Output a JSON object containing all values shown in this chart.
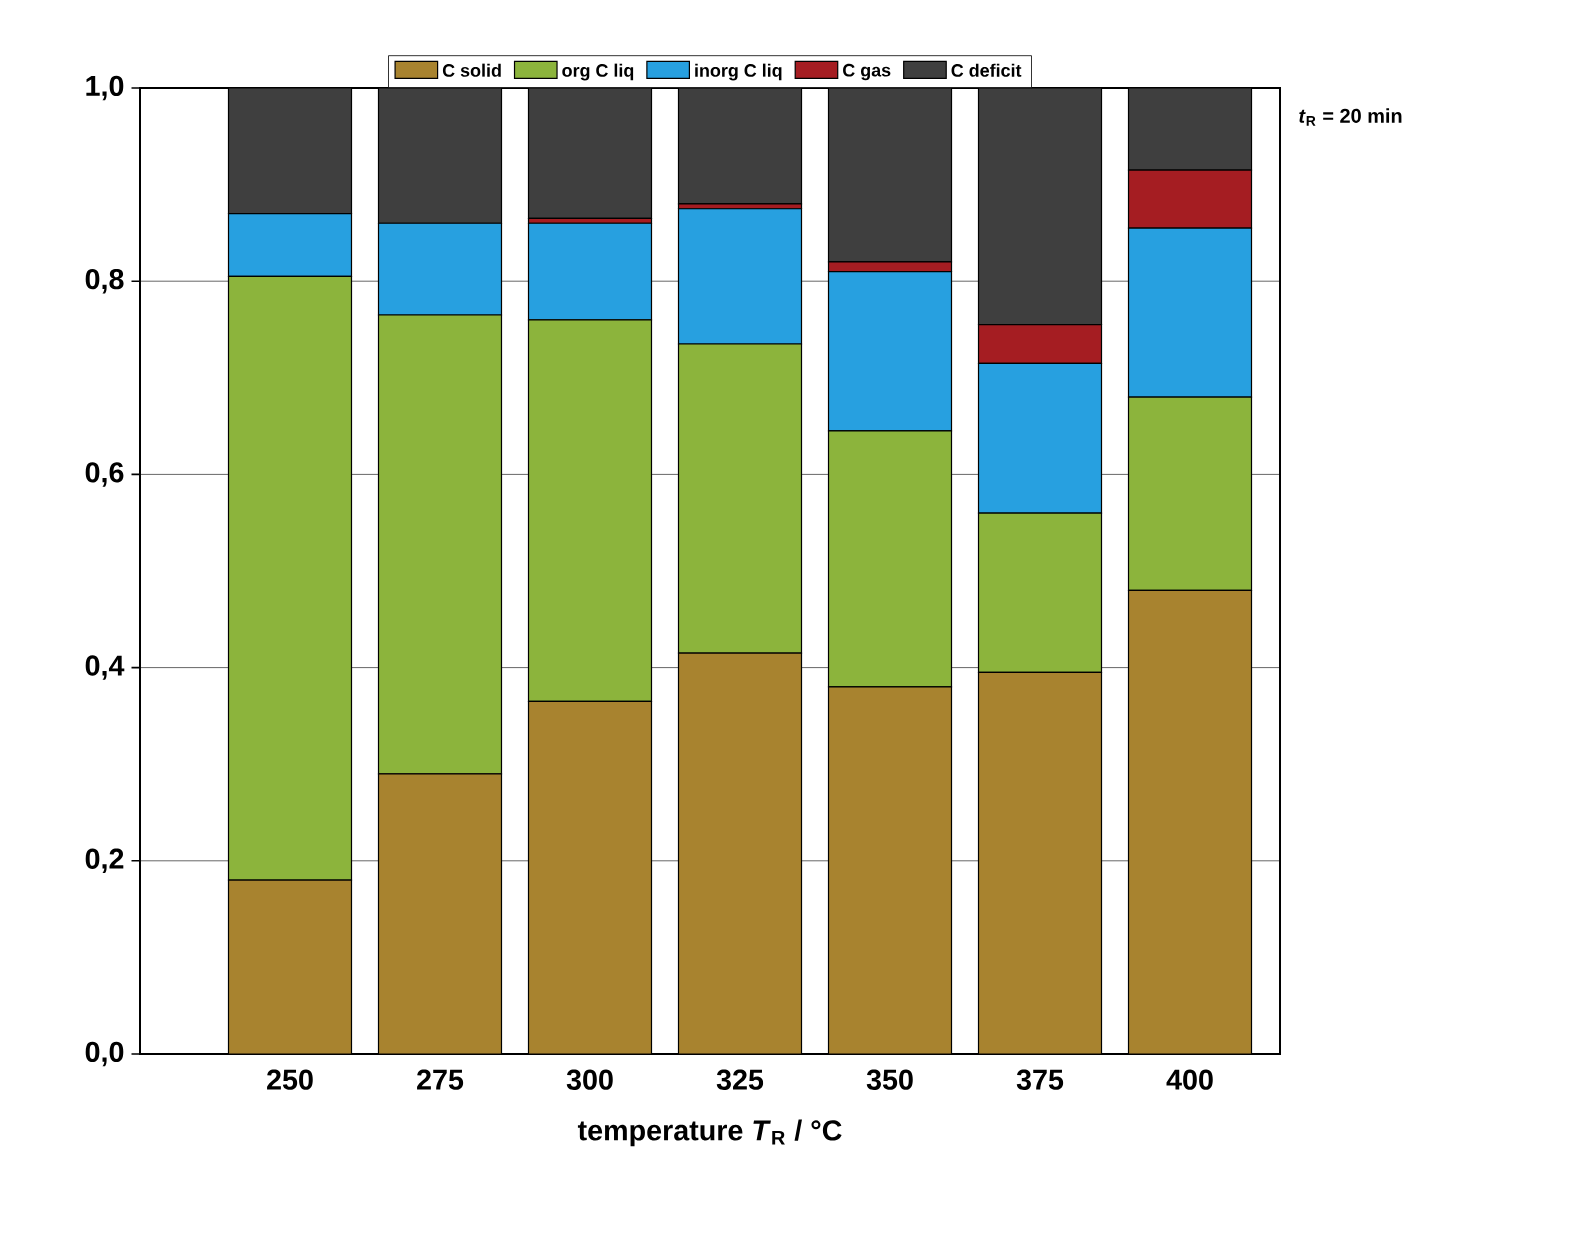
{
  "chart_data": {
    "type": "bar",
    "stacked": true,
    "xlabel": "temperature *T*$_{R}$ / °C",
    "annotations": [
      "*t*$_{R}$ = 20 min"
    ],
    "categories": [
      "250",
      "275",
      "300",
      "325",
      "350",
      "375",
      "400"
    ],
    "series": [
      {
        "name": "C solid",
        "color": "#a8832f",
        "values": [
          0.18,
          0.29,
          0.365,
          0.415,
          0.38,
          0.395,
          0.48
        ]
      },
      {
        "name": "org C liq",
        "color": "#8cb43c",
        "values": [
          0.625,
          0.475,
          0.395,
          0.32,
          0.265,
          0.165,
          0.2
        ]
      },
      {
        "name": "inorg C liq",
        "color": "#27a0e0",
        "values": [
          0.065,
          0.095,
          0.1,
          0.14,
          0.165,
          0.155,
          0.175
        ]
      },
      {
        "name": "C gas",
        "color": "#a51d22",
        "values": [
          0,
          0,
          0.005,
          0.005,
          0.01,
          0.04,
          0.06
        ]
      },
      {
        "name": "C deficit",
        "color": "#3f3f3f",
        "values": [
          0.13,
          0.14,
          0.135,
          0.12,
          0.18,
          0.245,
          0.085
        ]
      }
    ],
    "ylim": [
      0,
      1
    ],
    "yticks": [
      {
        "value": 0,
        "label": "0,0"
      },
      {
        "value": 0.2,
        "label": "0,2"
      },
      {
        "value": 0.4,
        "label": "0,4"
      },
      {
        "value": 0.6,
        "label": "0,6"
      },
      {
        "value": 0.8,
        "label": "0,8"
      },
      {
        "value": 1,
        "label": "1,0"
      }
    ],
    "grid": "y",
    "legend": "top"
  }
}
